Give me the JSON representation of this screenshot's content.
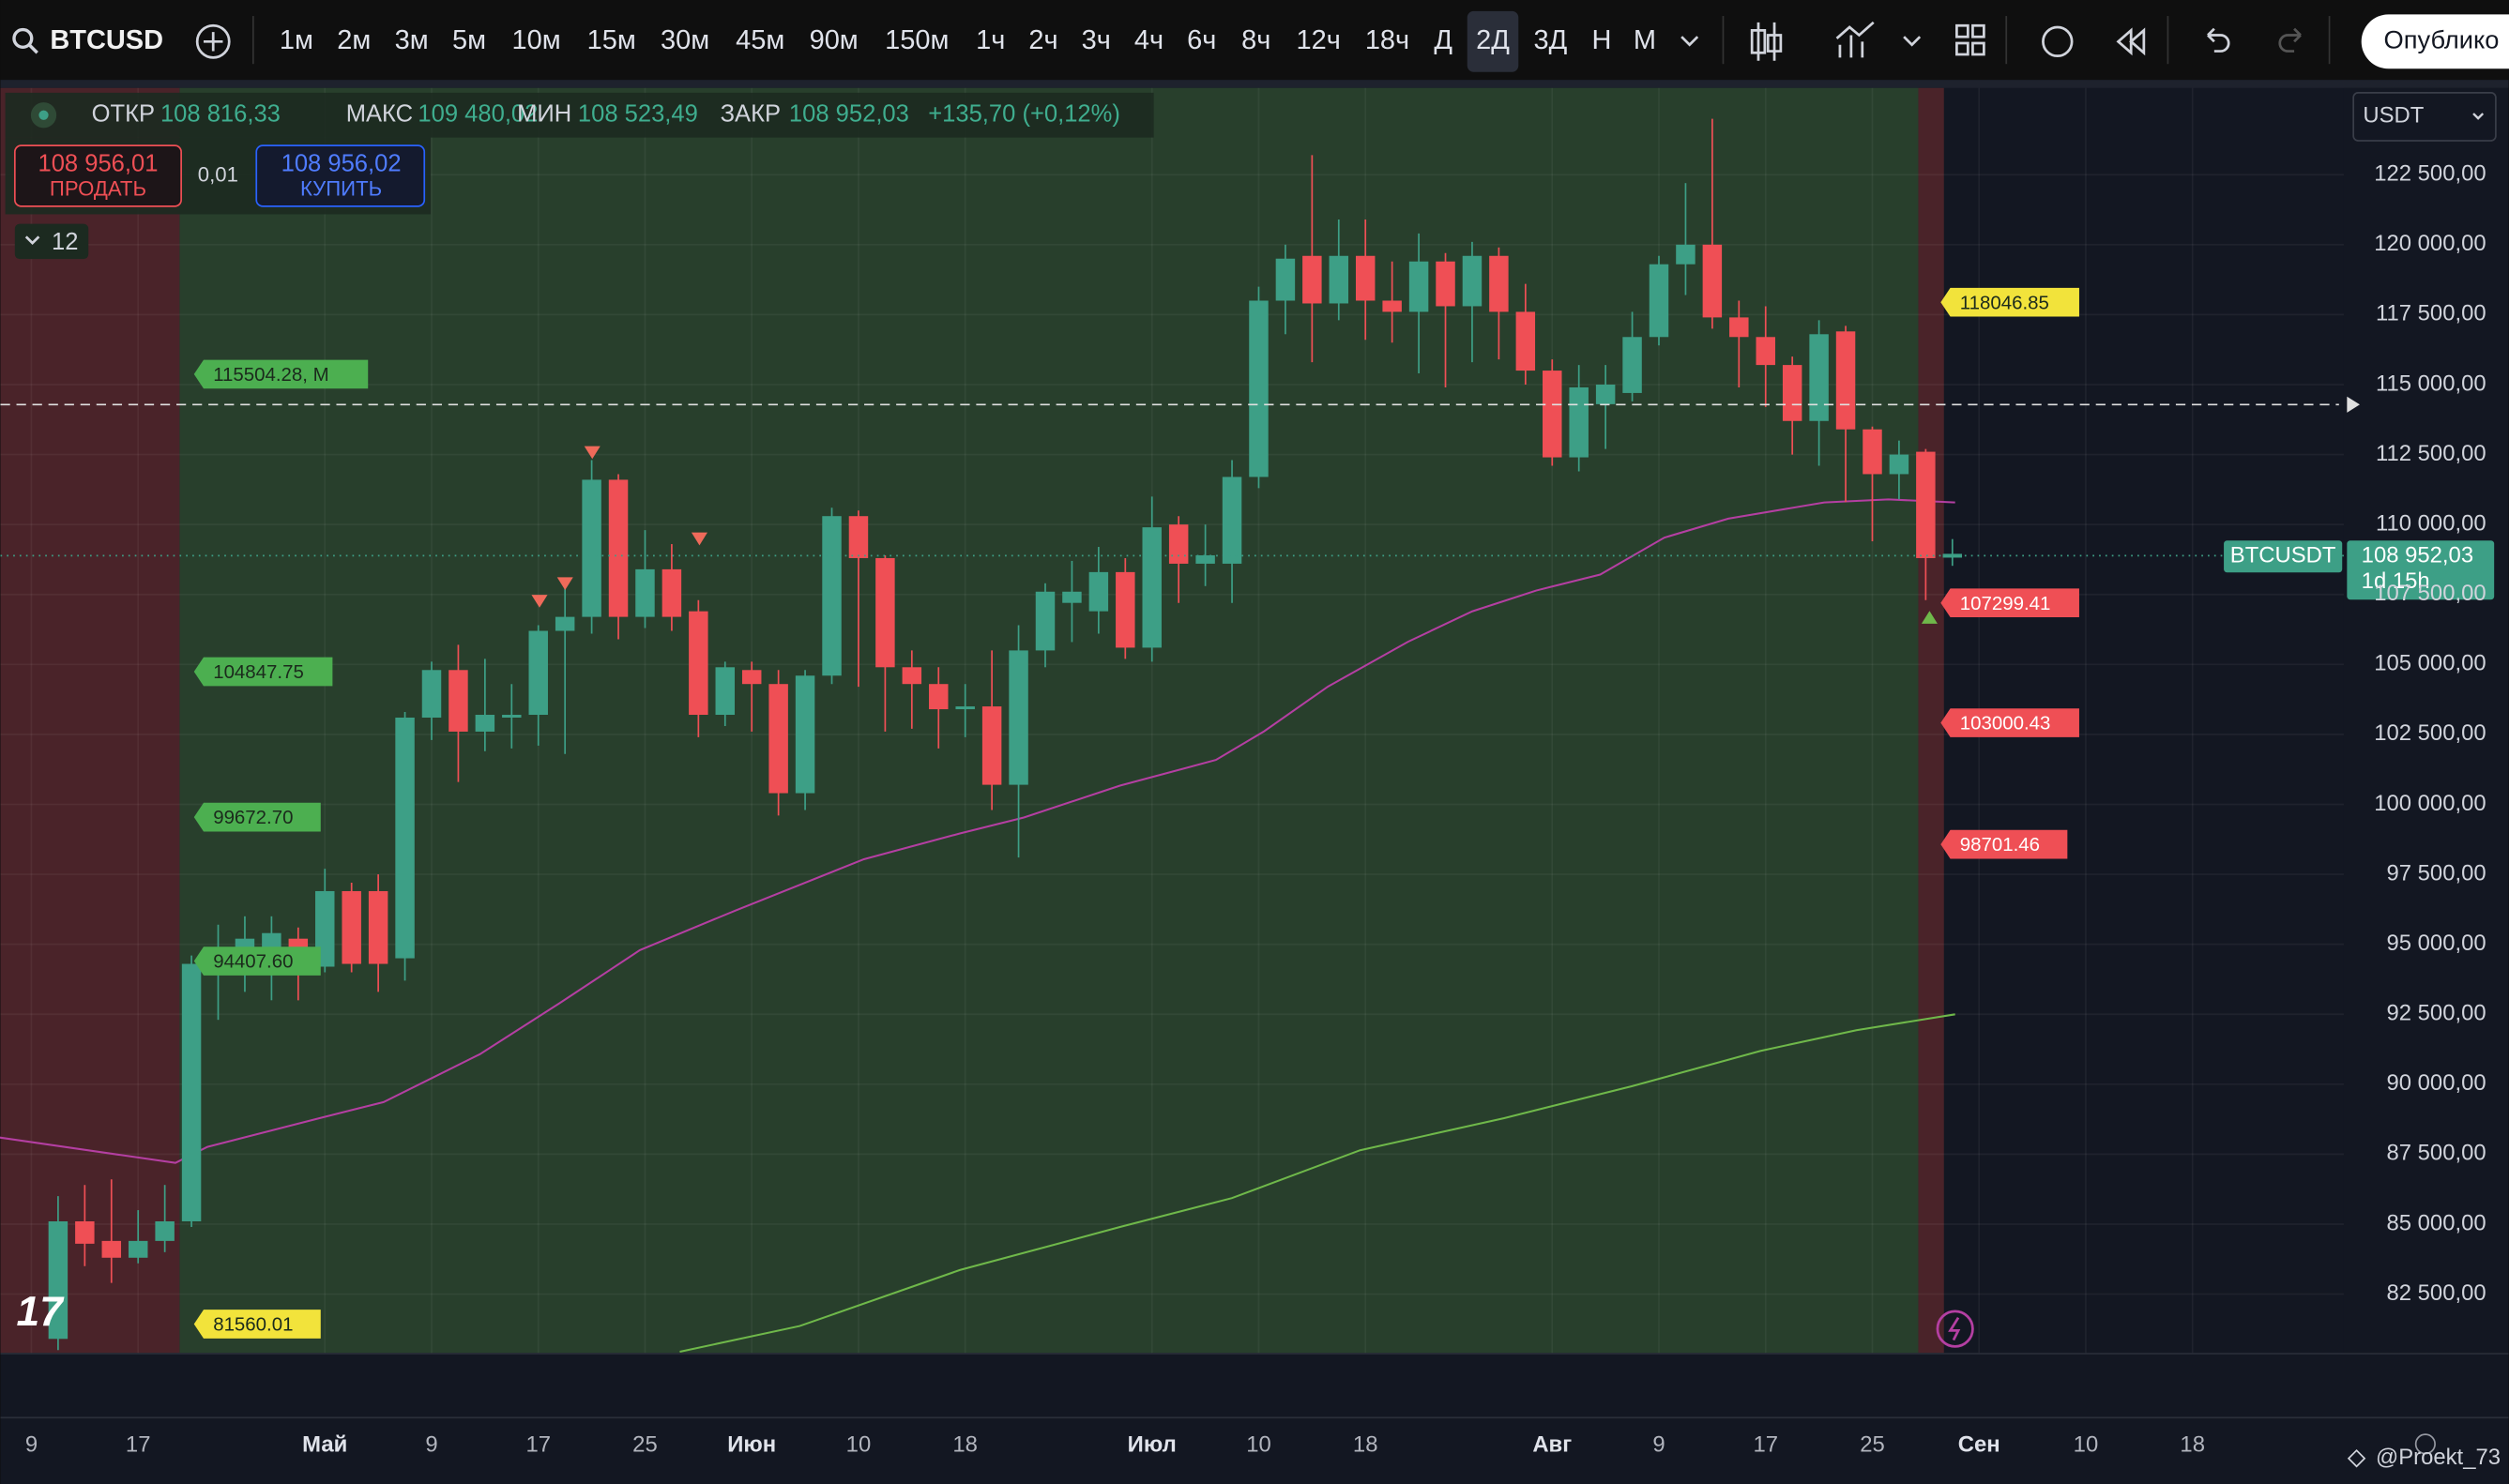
{
  "toolbar": {
    "symbol": "BTCUSD",
    "intervals": [
      "1м",
      "2м",
      "3м",
      "5м",
      "10м",
      "15м",
      "30м",
      "45м",
      "90м",
      "150м",
      "1ч",
      "2ч",
      "3ч",
      "4ч",
      "6ч",
      "8ч",
      "12ч",
      "18ч",
      "Д",
      "2Д",
      "3Д",
      "Н",
      "М"
    ],
    "active_interval": 19,
    "publish": "Опублико"
  },
  "legend": {
    "open_label": "ОТКР",
    "open": "108 816,33",
    "high_label": "МАКС",
    "high": "109 480,02",
    "low_label": "МИН",
    "low": "108 523,49",
    "close_label": "ЗАКР",
    "close": "108 952,03",
    "change": "+135,70 (+0,12%)"
  },
  "trade": {
    "sell_price": "108 956,01",
    "sell_label": "ПРОДАТЬ",
    "spread": "0,01",
    "buy_price": "108 956,02",
    "buy_label": "КУПИТЬ",
    "indicators": "12"
  },
  "currency": "USDT",
  "watermark": "@Proekt_73",
  "chart_data": {
    "type": "candlestick",
    "up_color": "#3d9f86",
    "down_color": "#ef4f55",
    "open": [
      80900,
      85100,
      84400,
      83800,
      84400,
      85100,
      94300,
      94800,
      94900,
      95200,
      94200,
      96900,
      96900,
      94500,
      103100,
      104800,
      102600,
      103100,
      103200,
      106200,
      106700,
      111600,
      106700,
      108400,
      106900,
      103200,
      104800,
      104300,
      100400,
      104600,
      110300,
      108800,
      104900,
      104300,
      103400,
      103500,
      100700,
      105500,
      107200,
      106900,
      108300,
      105600,
      110000,
      108600,
      108600,
      111700,
      118000,
      119600,
      117900,
      119600,
      118000,
      117600,
      119400,
      117800,
      119600,
      117600,
      115500,
      112400,
      114300,
      114700,
      116700,
      119300,
      120000,
      117400,
      116700,
      115700,
      113700,
      116900,
      113400,
      111800,
      112600,
      108816.33
    ],
    "high": [
      86000,
      86400,
      86600,
      85500,
      86400,
      94600,
      95700,
      96000,
      96000,
      95600,
      97700,
      97200,
      97500,
      103300,
      105100,
      105700,
      105200,
      104300,
      106400,
      108100,
      112300,
      111800,
      109800,
      109300,
      107300,
      105100,
      105100,
      104800,
      104800,
      110600,
      110500,
      108900,
      105500,
      104900,
      104300,
      105500,
      106400,
      107900,
      108700,
      109200,
      108800,
      111000,
      110300,
      110000,
      112300,
      118500,
      120000,
      123200,
      120900,
      120900,
      119400,
      120400,
      119700,
      120100,
      119900,
      118600,
      115900,
      115700,
      115700,
      117600,
      119600,
      122200,
      124500,
      118000,
      117800,
      116000,
      117300,
      117100,
      113500,
      113000,
      112700,
      109480.02
    ],
    "low": [
      80500,
      83500,
      82900,
      83600,
      84000,
      84900,
      92300,
      93300,
      93000,
      93000,
      94000,
      94000,
      93300,
      93700,
      102300,
      100800,
      101900,
      102000,
      102100,
      101800,
      106100,
      105900,
      106300,
      106200,
      102400,
      102800,
      102600,
      99600,
      99800,
      104300,
      104200,
      102600,
      102700,
      102000,
      102400,
      99800,
      98100,
      104900,
      105800,
      106100,
      105200,
      105100,
      107200,
      107800,
      107200,
      111300,
      116800,
      115800,
      117300,
      116600,
      116500,
      115400,
      114900,
      115800,
      115900,
      115000,
      112100,
      111900,
      112700,
      114400,
      116400,
      118200,
      117000,
      114900,
      114200,
      112500,
      112100,
      110800,
      109400,
      110900,
      107300,
      108523.49
    ],
    "close": [
      85100,
      84300,
      83800,
      84400,
      85100,
      94300,
      94800,
      95200,
      95400,
      94200,
      96900,
      94300,
      94300,
      103100,
      104800,
      102600,
      103200,
      103200,
      106200,
      106700,
      111600,
      106700,
      108400,
      106700,
      103200,
      104900,
      104300,
      100400,
      104600,
      110300,
      108800,
      104900,
      104300,
      103400,
      103500,
      100700,
      105500,
      107600,
      107600,
      108300,
      105600,
      109900,
      108600,
      108900,
      111700,
      118000,
      119500,
      117900,
      119600,
      118000,
      117600,
      119400,
      117800,
      119600,
      117600,
      115500,
      112400,
      114900,
      115000,
      116700,
      119300,
      120000,
      117400,
      116700,
      115700,
      113700,
      116800,
      113400,
      111800,
      112500,
      108800,
      108952.03
    ],
    "moving_averages": [
      {
        "color": "#b43fa2",
        "x": [
          -2.2,
          4.4,
          5.6,
          9.8,
          12.2,
          15.8,
          18.8,
          21.8,
          25.4,
          30.2,
          33.8,
          36.2,
          39.8,
          43.4,
          45.2,
          47.6,
          50.6,
          53.0,
          55.4,
          57.8,
          60.2,
          62.6,
          66.2,
          68.6,
          71.1
        ],
        "values": [
          88100,
          87190,
          87760,
          88790,
          89360,
          91070,
          92900,
          94790,
          96210,
          98040,
          98960,
          99530,
          100670,
          101590,
          102610,
          104210,
          105810,
          106900,
          107640,
          108210,
          109530,
          110210,
          110790,
          110900,
          110790
        ]
      },
      {
        "color": "#6fb84a",
        "x": [
          23.3,
          27.8,
          33.8,
          39.8,
          44.0,
          48.8,
          54.2,
          59.0,
          63.8,
          67.4,
          71.1
        ],
        "values": [
          80440,
          81360,
          83360,
          84900,
          85930,
          87640,
          88790,
          89930,
          91190,
          91930,
          92500
        ]
      }
    ],
    "xlim": [
      -2.16,
      85.67
    ],
    "ylim": [
      80400,
      125600
    ],
    "xticks": [
      {
        "value": -1,
        "label": "9"
      },
      {
        "value": 3,
        "label": "17"
      },
      {
        "value": 10,
        "label": "Май"
      },
      {
        "value": 14,
        "label": "9"
      },
      {
        "value": 18,
        "label": "17"
      },
      {
        "value": 22,
        "label": "25"
      },
      {
        "value": 26,
        "label": "Июн"
      },
      {
        "value": 30,
        "label": "10"
      },
      {
        "value": 34,
        "label": "18"
      },
      {
        "value": 41,
        "label": "Июл"
      },
      {
        "value": 45,
        "label": "10"
      },
      {
        "value": 49,
        "label": "18"
      },
      {
        "value": 56,
        "label": "Авг"
      },
      {
        "value": 60,
        "label": "9"
      },
      {
        "value": 64,
        "label": "17"
      },
      {
        "value": 68,
        "label": "25"
      },
      {
        "value": 72,
        "label": "Сен"
      },
      {
        "value": 76,
        "label": "10"
      },
      {
        "value": 80,
        "label": "18"
      }
    ],
    "yticks": [
      {
        "value": 82500,
        "label": "82 500,00"
      },
      {
        "value": 85000,
        "label": "85 000,00"
      },
      {
        "value": 87500,
        "label": "87 500,00"
      },
      {
        "value": 90000,
        "label": "90 000,00"
      },
      {
        "value": 92500,
        "label": "92 500,00"
      },
      {
        "value": 95000,
        "label": "95 000,00"
      },
      {
        "value": 97500,
        "label": "97 500,00"
      },
      {
        "value": 100000,
        "label": "100 000,00"
      },
      {
        "value": 102500,
        "label": "102 500,00"
      },
      {
        "value": 105000,
        "label": "105 000,00"
      },
      {
        "value": 107500,
        "label": "107 500,00"
      },
      {
        "value": 110000,
        "label": "110 000,00"
      },
      {
        "value": 112500,
        "label": "112 500,00"
      },
      {
        "value": 115000,
        "label": "115 000,00"
      },
      {
        "value": 117500,
        "label": "117 500,00"
      },
      {
        "value": 120000,
        "label": "120 000,00"
      },
      {
        "value": 122500,
        "label": "122 500,00"
      }
    ],
    "grid": true,
    "annotations": [
      {
        "text": "115504.28, M",
        "color": "#4caf50"
      },
      {
        "text": "104847.75",
        "color": "#4caf50"
      },
      {
        "text": "99672.70",
        "color": "#4caf50"
      },
      {
        "text": "94407.60",
        "color": "#4caf50"
      },
      {
        "text": "81560.01",
        "color": "#f2e33b"
      },
      {
        "text": "118046.85",
        "color": "#f2e33b"
      },
      {
        "text": "107299.41",
        "color": "#ef4f55"
      },
      {
        "text": "103000.43",
        "color": "#ef4f55"
      },
      {
        "text": "98701.46",
        "color": "#ef4f55"
      }
    ],
    "last_price": {
      "symbol": "BTCUSDT",
      "label": "108 952,03",
      "countdown": "1d 15h",
      "color": "#3d9f86"
    }
  }
}
